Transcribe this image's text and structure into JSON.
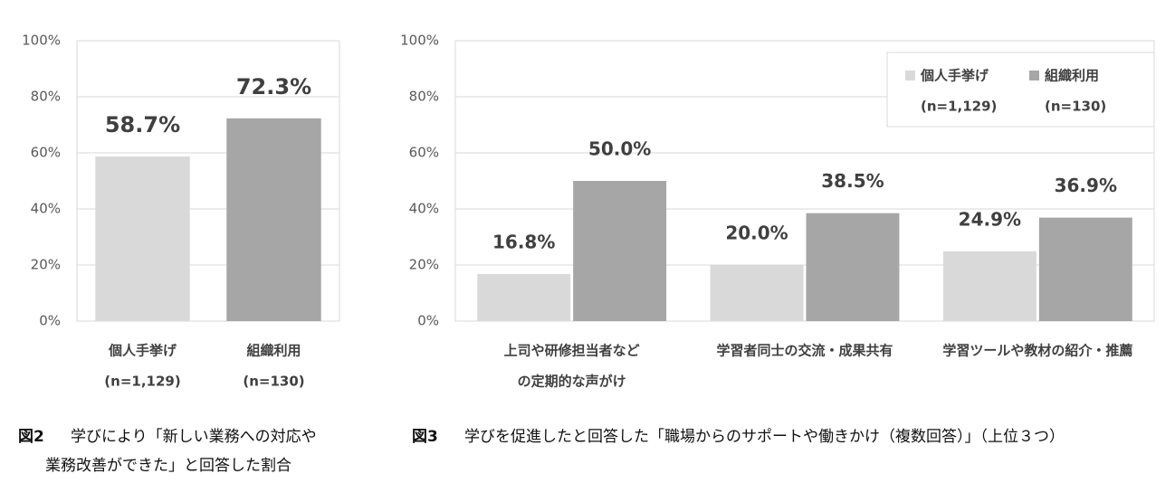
{
  "chart_data": [
    {
      "type": "bar",
      "categories": [
        [
          "個人手挙げ",
          "(n=1,129)"
        ],
        [
          "組織利用",
          "(n=130)"
        ]
      ],
      "values": [
        58.7,
        72.3
      ],
      "value_labels": [
        "58.7%",
        "72.3%"
      ],
      "colors": [
        "#d9d9d9",
        "#a6a6a6"
      ],
      "ylim": [
        0,
        100
      ],
      "yticks": [
        {
          "value": 0,
          "label": "0%"
        },
        {
          "value": 20,
          "label": "20%"
        },
        {
          "value": 40,
          "label": "40%"
        },
        {
          "value": 60,
          "label": "60%"
        },
        {
          "value": 80,
          "label": "80%"
        },
        {
          "value": 100,
          "label": "100%"
        }
      ],
      "grid": true,
      "caption_label": "図2",
      "caption_lines": [
        "学びにより「新しい業務への対応や",
        "業務改善ができた」と回答した割合"
      ]
    },
    {
      "type": "grouped_bar",
      "categories": [
        [
          "上司や研修担当者など",
          "の定期的な声がけ"
        ],
        [
          "学習者同士の交流・成果共有"
        ],
        [
          "学習ツールや教材の紹介・推薦"
        ]
      ],
      "series": [
        {
          "name": "個人手挙げ",
          "sample": "(n=1,129)",
          "color": "#d9d9d9",
          "values": [
            16.8,
            20.0,
            24.9
          ],
          "value_labels": [
            "16.8%",
            "20.0%",
            "24.9%"
          ]
        },
        {
          "name": "組織利用",
          "sample": "(n=130)",
          "color": "#a6a6a6",
          "values": [
            50.0,
            38.5,
            36.9
          ],
          "value_labels": [
            "50.0%",
            "38.5%",
            "36.9%"
          ]
        }
      ],
      "ylim": [
        0,
        100
      ],
      "yticks": [
        {
          "value": 0,
          "label": "0%"
        },
        {
          "value": 20,
          "label": "20%"
        },
        {
          "value": 40,
          "label": "40%"
        },
        {
          "value": 60,
          "label": "60%"
        },
        {
          "value": 80,
          "label": "80%"
        },
        {
          "value": 100,
          "label": "100%"
        }
      ],
      "grid": true,
      "legend": "top-right",
      "caption_label": "図3",
      "caption_lines": [
        "学びを促進したと回答した「職場からのサポートや働きかけ（複数回答）」（上位３つ）"
      ]
    }
  ]
}
